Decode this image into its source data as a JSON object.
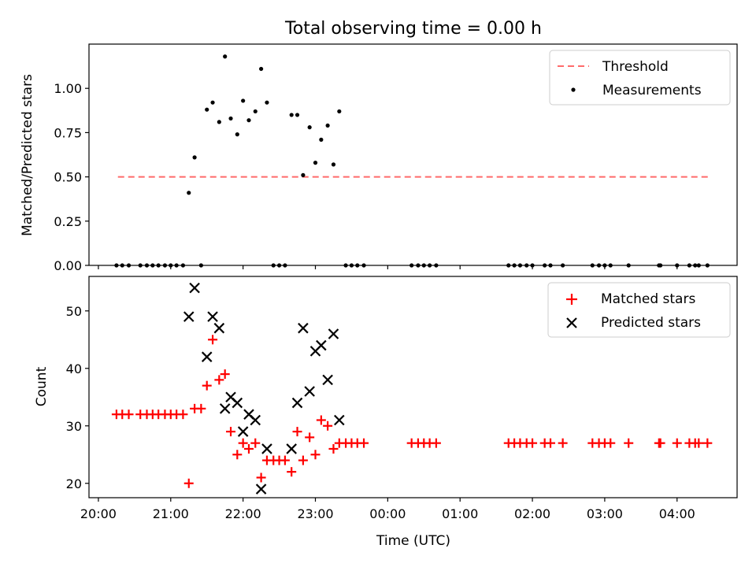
{
  "figure_title": "Total observing time = 0.00 h",
  "colors": {
    "threshold": "#ff6b6b",
    "measurement": "#000000",
    "matched": "#ff0000",
    "predicted": "#000000"
  },
  "chart_data": [
    {
      "type": "scatter",
      "title": "Total observing time = 0.00 h",
      "xlabel": "",
      "ylabel": "Matched/Predicted stars",
      "x_unit": "hours after 20:00 UTC",
      "xlim": [
        -0.13,
        8.83
      ],
      "ylim": [
        0,
        1.25
      ],
      "yticks": [
        "0.00",
        "0.25",
        "0.50",
        "0.75",
        "1.00"
      ],
      "ytick_values": [
        0,
        0.25,
        0.5,
        0.75,
        1.0
      ],
      "grid": false,
      "legend_position": "top-right",
      "legend": [
        "Threshold",
        "Measurements"
      ],
      "threshold": {
        "name": "Threshold",
        "value": 0.5,
        "x_start": 0.27,
        "x_end": 8.43
      },
      "measurements": {
        "name": "Measurements",
        "x": [
          0.25,
          0.33,
          0.42,
          0.58,
          0.67,
          0.75,
          0.83,
          0.92,
          1.0,
          1.08,
          1.17,
          1.25,
          1.33,
          1.42,
          1.5,
          1.58,
          1.67,
          1.75,
          1.83,
          1.92,
          2.0,
          2.08,
          2.17,
          2.25,
          2.33,
          2.42,
          2.5,
          2.58,
          2.67,
          2.75,
          2.83,
          2.92,
          3.0,
          3.08,
          3.17,
          3.25,
          3.33,
          3.42,
          3.5,
          3.58,
          3.67,
          4.33,
          4.42,
          4.5,
          4.58,
          4.67,
          5.67,
          5.75,
          5.83,
          5.92,
          6.0,
          6.17,
          6.25,
          6.42,
          6.83,
          6.92,
          7.0,
          7.08,
          7.33,
          7.75,
          7.77,
          8.0,
          8.17,
          8.25,
          8.3,
          8.42
        ],
        "y": [
          0,
          0,
          0,
          0,
          0,
          0,
          0,
          0,
          0,
          0,
          0,
          0.41,
          0.61,
          0,
          0.88,
          0.92,
          0.81,
          1.18,
          0.83,
          0.74,
          0.93,
          0.82,
          0.87,
          1.11,
          0.92,
          0,
          0,
          0,
          0.85,
          0.85,
          0.51,
          0.78,
          0.58,
          0.71,
          0.79,
          0.57,
          0.87,
          0,
          0,
          0,
          0,
          0,
          0,
          0,
          0,
          0,
          0,
          0,
          0,
          0,
          0,
          0,
          0,
          0,
          0,
          0,
          0,
          0,
          0,
          0,
          0,
          0,
          0,
          0,
          0,
          0
        ]
      }
    },
    {
      "type": "scatter",
      "xlabel": "Time (UTC)",
      "ylabel": "Count",
      "xlim": [
        -0.13,
        8.83
      ],
      "ylim": [
        17.5,
        56
      ],
      "yticks": [
        "20",
        "30",
        "40",
        "50"
      ],
      "ytick_values": [
        20,
        30,
        40,
        50
      ],
      "xticks": [
        "20:00",
        "21:00",
        "22:00",
        "23:00",
        "00:00",
        "01:00",
        "02:00",
        "03:00",
        "04:00"
      ],
      "xtick_values": [
        0,
        1,
        2,
        3,
        4,
        5,
        6,
        7,
        8
      ],
      "grid": false,
      "legend_position": "top-right",
      "legend": [
        "Matched stars",
        "Predicted stars"
      ],
      "series": [
        {
          "name": "Matched stars",
          "x": [
            0.25,
            0.33,
            0.42,
            0.58,
            0.67,
            0.75,
            0.83,
            0.92,
            1.0,
            1.08,
            1.17,
            1.25,
            1.33,
            1.42,
            1.5,
            1.58,
            1.67,
            1.75,
            1.83,
            1.92,
            2.0,
            2.08,
            2.17,
            2.25,
            2.33,
            2.42,
            2.5,
            2.58,
            2.67,
            2.75,
            2.83,
            2.92,
            3.0,
            3.08,
            3.17,
            3.25,
            3.33,
            3.42,
            3.5,
            3.58,
            3.67,
            4.33,
            4.42,
            4.5,
            4.58,
            4.67,
            5.67,
            5.75,
            5.83,
            5.92,
            6.0,
            6.17,
            6.25,
            6.42,
            6.83,
            6.92,
            7.0,
            7.08,
            7.33,
            7.75,
            7.77,
            8.0,
            8.17,
            8.25,
            8.3,
            8.42
          ],
          "y": [
            32,
            32,
            32,
            32,
            32,
            32,
            32,
            32,
            32,
            32,
            32,
            20,
            33,
            33,
            37,
            45,
            38,
            39,
            29,
            25,
            27,
            26,
            27,
            21,
            24,
            24,
            24,
            24,
            22,
            29,
            24,
            28,
            25,
            31,
            30,
            26,
            27,
            27,
            27,
            27,
            27,
            27,
            27,
            27,
            27,
            27,
            27,
            27,
            27,
            27,
            27,
            27,
            27,
            27,
            27,
            27,
            27,
            27,
            27,
            27,
            27,
            27,
            27,
            27,
            27,
            27
          ]
        },
        {
          "name": "Predicted stars",
          "x": [
            1.25,
            1.33,
            1.5,
            1.58,
            1.67,
            1.75,
            1.83,
            1.92,
            2.0,
            2.08,
            2.17,
            2.25,
            2.33,
            2.67,
            2.75,
            2.83,
            2.92,
            3.0,
            3.08,
            3.17,
            3.25,
            3.33
          ],
          "y": [
            49,
            54,
            42,
            49,
            47,
            33,
            35,
            34,
            29,
            32,
            31,
            19,
            26,
            26,
            34,
            47,
            36,
            43,
            44,
            38,
            46,
            31
          ]
        }
      ]
    }
  ]
}
